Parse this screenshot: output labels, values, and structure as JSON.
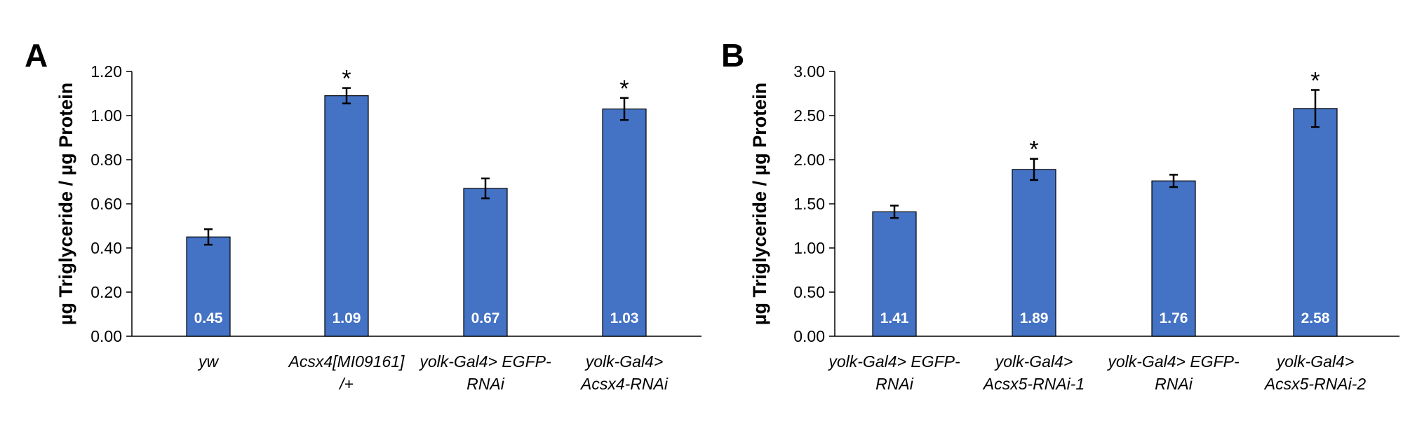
{
  "chart_data": [
    {
      "panel": "A",
      "type": "bar",
      "ylabel": "µg Triglyceride / µg Protein",
      "ylim": [
        0,
        1.2
      ],
      "yticks": [
        "0.00",
        "0.20",
        "0.40",
        "0.60",
        "0.80",
        "1.00",
        "1.20"
      ],
      "categories": [
        [
          "yw"
        ],
        [
          "Acsx4[MI09161]",
          "/+"
        ],
        [
          "yolk-Gal4> EGFP-",
          "RNAi"
        ],
        [
          "yolk-Gal4>",
          "Acsx4-RNAi"
        ]
      ],
      "values": [
        0.45,
        1.09,
        0.67,
        1.03
      ],
      "data_labels": [
        "0.45",
        "1.09",
        "0.67",
        "1.03"
      ],
      "errors": [
        0.035,
        0.035,
        0.045,
        0.05
      ],
      "significance": [
        "",
        "*",
        "",
        "*"
      ],
      "bar_color": "#4472C4",
      "grid": false
    },
    {
      "panel": "B",
      "type": "bar",
      "ylabel": "µg Triglyceride / µg Protein",
      "ylim": [
        0,
        3.0
      ],
      "yticks": [
        "0.00",
        "0.50",
        "1.00",
        "1.50",
        "2.00",
        "2.50",
        "3.00"
      ],
      "categories": [
        [
          "yolk-Gal4> EGFP-",
          "RNAi"
        ],
        [
          "yolk-Gal4>",
          "Acsx5-RNAi-1"
        ],
        [
          "yolk-Gal4> EGFP-",
          "RNAi"
        ],
        [
          "yolk-Gal4>",
          "Acsx5-RNAi-2"
        ]
      ],
      "values": [
        1.41,
        1.89,
        1.76,
        2.58
      ],
      "data_labels": [
        "1.41",
        "1.89",
        "1.76",
        "2.58"
      ],
      "errors": [
        0.07,
        0.12,
        0.07,
        0.21
      ],
      "significance": [
        "",
        "*",
        "",
        "*"
      ],
      "bar_color": "#4472C4",
      "grid": false
    }
  ]
}
